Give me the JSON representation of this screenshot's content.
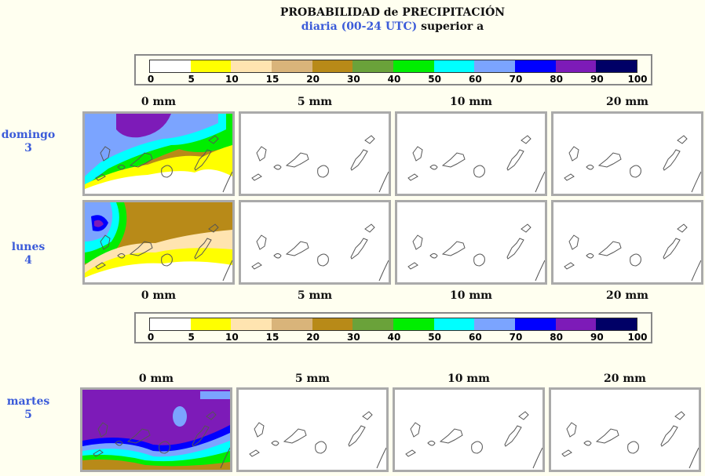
{
  "header": {
    "title": "PROBABILIDAD de PRECIPITACIÓN",
    "subtitle_blue": "diaria (00-24 UTC)",
    "subtitle_rest": " superior a"
  },
  "legend": {
    "colors": [
      "#ffffff",
      "#ffff00",
      "#ffe4b0",
      "#d9b47a",
      "#b88a18",
      "#6aa23a",
      "#00ee00",
      "#00ffff",
      "#7ba4ff",
      "#0000ff",
      "#7d1bb8",
      "#000066"
    ],
    "ticks": [
      "0",
      "5",
      "10",
      "15",
      "20",
      "30",
      "40",
      "50",
      "60",
      "70",
      "80",
      "90",
      "100"
    ]
  },
  "columns": [
    "0 mm",
    "5 mm",
    "10 mm",
    "20 mm"
  ],
  "days": [
    {
      "name": "domingo",
      "num": "3"
    },
    {
      "name": "lunes",
      "num": "4"
    },
    {
      "name": "martes",
      "num": "5"
    }
  ]
}
